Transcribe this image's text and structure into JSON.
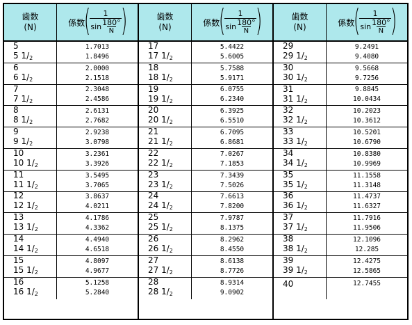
{
  "header": {
    "teeth_label": "歯数",
    "teeth_unit": "(N)",
    "coef_label": "係数",
    "paren_open": "(",
    "paren_close": ")",
    "frac_numerator": "1",
    "sin_word": "sin",
    "angle_numerator": "180°",
    "angle_denominator": "N"
  },
  "half_marker": "1",
  "half_den": "2",
  "panels": [
    {
      "rows": [
        {
          "n": "5",
          "c1": "1.7013",
          "c2": "1.8496"
        },
        {
          "n": "6",
          "c1": "2.0000",
          "c2": "2.1518"
        },
        {
          "n": "7",
          "c1": "2.3048",
          "c2": "2.4586"
        },
        {
          "n": "8",
          "c1": "2.6131",
          "c2": "2.7682"
        },
        {
          "n": "9",
          "c1": "2.9238",
          "c2": "3.0798"
        },
        {
          "n": "10",
          "c1": "3.2361",
          "c2": "3.3926"
        },
        {
          "n": "11",
          "c1": "3.5495",
          "c2": "3.7065"
        },
        {
          "n": "12",
          "c1": "3.8637",
          "c2": "4.0211"
        },
        {
          "n": "13",
          "c1": "4.1786",
          "c2": "4.3362"
        },
        {
          "n": "14",
          "c1": "4.4940",
          "c2": "4.6518"
        },
        {
          "n": "15",
          "c1": "4.8097",
          "c2": "4.9677"
        },
        {
          "n": "16",
          "c1": "5.1258",
          "c2": "5.2840"
        }
      ]
    },
    {
      "rows": [
        {
          "n": "17",
          "c1": "5.4422",
          "c2": "5.6005"
        },
        {
          "n": "18",
          "c1": "5.7588",
          "c2": "5.9171"
        },
        {
          "n": "19",
          "c1": "6.0755",
          "c2": "6.2340"
        },
        {
          "n": "20",
          "c1": "6.3925",
          "c2": "6.5510"
        },
        {
          "n": "21",
          "c1": "6.7095",
          "c2": "6.8681"
        },
        {
          "n": "22",
          "c1": "7.0267",
          "c2": "7.1853"
        },
        {
          "n": "23",
          "c1": "7.3439",
          "c2": "7.5026"
        },
        {
          "n": "24",
          "c1": "7.6613",
          "c2": "7.8200"
        },
        {
          "n": "25",
          "c1": "7.9787",
          "c2": "8.1375"
        },
        {
          "n": "26",
          "c1": "8.2962",
          "c2": "8.4550"
        },
        {
          "n": "27",
          "c1": "8.6138",
          "c2": "8.7726"
        },
        {
          "n": "28",
          "c1": "8.9314",
          "c2": "9.0902"
        }
      ]
    },
    {
      "rows": [
        {
          "n": "29",
          "c1": "9.2491",
          "c2": "9.4080"
        },
        {
          "n": "30",
          "c1": "9.5668",
          "c2": "9.7256"
        },
        {
          "n": "31",
          "c1": "9.8845",
          "c2": "10.0434"
        },
        {
          "n": "32",
          "c1": "10.2023",
          "c2": "10.3612"
        },
        {
          "n": "33",
          "c1": "10.5201",
          "c2": "10.6790"
        },
        {
          "n": "34",
          "c1": "10.8380",
          "c2": "10.9969"
        },
        {
          "n": "35",
          "c1": "11.1558",
          "c2": "11.3148"
        },
        {
          "n": "36",
          "c1": "11.4737",
          "c2": "11.6327"
        },
        {
          "n": "37",
          "c1": "11.7916",
          "c2": "11.9506"
        },
        {
          "n": "38",
          "c1": "12.1096",
          "c2": "12.285"
        },
        {
          "n": "39",
          "c1": "12.4275",
          "c2": "12.5865"
        },
        {
          "n": "40",
          "c1": "12.7455"
        }
      ]
    }
  ]
}
